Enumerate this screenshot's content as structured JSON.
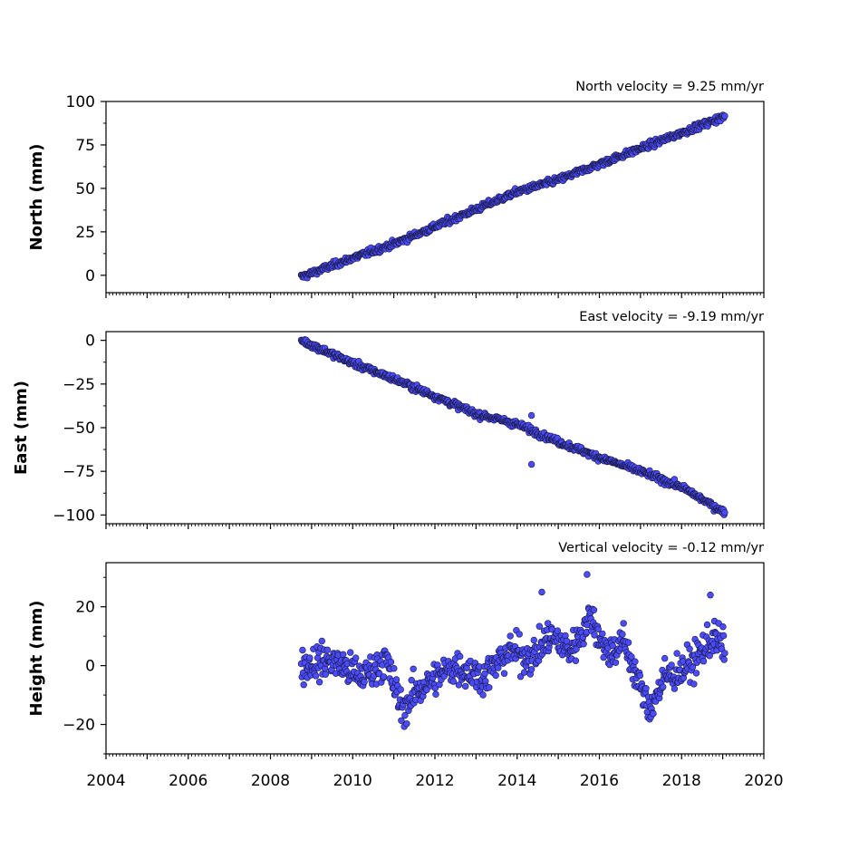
{
  "chart_data": [
    {
      "type": "scatter",
      "annotation": "North velocity = 9.25 mm/yr",
      "ylabel": "North (mm)",
      "xlim": [
        2004,
        2020
      ],
      "ylim": [
        -10,
        100
      ],
      "yticks": [
        0,
        25,
        50,
        75,
        100
      ],
      "ytick_labels": [
        "0",
        "25",
        "50",
        "75",
        "100"
      ],
      "x_start": 2008.75,
      "x_end": 2019.05,
      "y_start": -1,
      "y_end": 92,
      "trend_waypoints": [
        [
          2008.75,
          -1
        ],
        [
          2010,
          10
        ],
        [
          2011,
          18
        ],
        [
          2012,
          28
        ],
        [
          2013,
          38
        ],
        [
          2014,
          48
        ],
        [
          2015,
          55
        ],
        [
          2016,
          64
        ],
        [
          2017,
          73
        ],
        [
          2018,
          82
        ],
        [
          2019,
          91
        ]
      ],
      "outliers": []
    },
    {
      "type": "scatter",
      "annotation": "East velocity = -9.19 mm/yr",
      "ylabel": "East (mm)",
      "xlim": [
        2004,
        2020
      ],
      "ylim": [
        -105,
        5
      ],
      "yticks": [
        0,
        -25,
        -50,
        -75,
        -100
      ],
      "ytick_labels": [
        "0",
        "−25",
        "−50",
        "−75",
        "−100"
      ],
      "x_start": 2008.75,
      "x_end": 2019.05,
      "y_start": 0,
      "y_end": -100,
      "trend_waypoints": [
        [
          2008.75,
          0
        ],
        [
          2010,
          -13
        ],
        [
          2011,
          -22
        ],
        [
          2012,
          -32
        ],
        [
          2013,
          -42
        ],
        [
          2014,
          -48
        ],
        [
          2015,
          -58
        ],
        [
          2016,
          -67
        ],
        [
          2017,
          -75
        ],
        [
          2018,
          -84
        ],
        [
          2019,
          -98
        ]
      ],
      "outliers": [
        [
          2014.35,
          -43
        ],
        [
          2014.35,
          -71
        ]
      ]
    },
    {
      "type": "scatter",
      "annotation": "Vertical velocity = -0.12 mm/yr",
      "ylabel": "Height (mm)",
      "xlim": [
        2004,
        2020
      ],
      "ylim": [
        -30,
        35
      ],
      "yticks": [
        -20,
        0,
        20
      ],
      "ytick_labels": [
        "−20",
        "0",
        "20"
      ],
      "x_start": 2008.75,
      "x_end": 2019.05,
      "trend_waypoints": [
        [
          2008.75,
          0
        ],
        [
          2009.5,
          2
        ],
        [
          2010.2,
          -4
        ],
        [
          2010.8,
          2
        ],
        [
          2011.2,
          -15
        ],
        [
          2011.6,
          -8
        ],
        [
          2012.5,
          0
        ],
        [
          2013.2,
          -4
        ],
        [
          2013.8,
          5
        ],
        [
          2014.4,
          3
        ],
        [
          2014.8,
          10
        ],
        [
          2015.3,
          5
        ],
        [
          2015.8,
          17
        ],
        [
          2016.2,
          4
        ],
        [
          2016.6,
          8
        ],
        [
          2017.2,
          -15
        ],
        [
          2017.6,
          -4
        ],
        [
          2018.2,
          0
        ],
        [
          2018.8,
          10
        ],
        [
          2019.05,
          5
        ]
      ],
      "outliers": [
        [
          2015.7,
          31
        ],
        [
          2014.6,
          25
        ],
        [
          2018.7,
          24
        ]
      ]
    }
  ],
  "xaxis": {
    "ticks": [
      2004,
      2006,
      2008,
      2010,
      2012,
      2014,
      2016,
      2018,
      2020
    ],
    "tick_labels": [
      "2004",
      "2006",
      "2008",
      "2010",
      "2012",
      "2014",
      "2016",
      "2018",
      "2020"
    ]
  }
}
